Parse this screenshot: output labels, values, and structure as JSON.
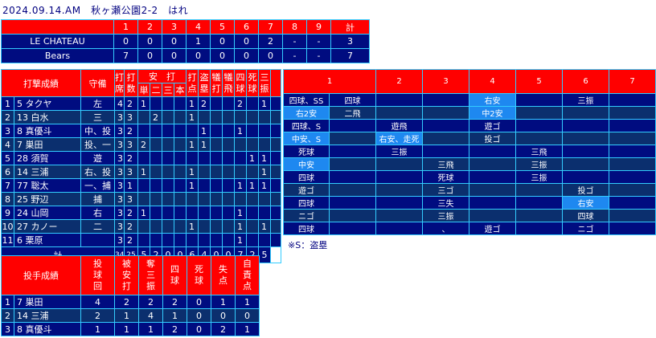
{
  "header": {
    "title": "2024.09.14.AM　秋ヶ瀬公園2-2　はれ"
  },
  "linescore": {
    "innings": [
      "1",
      "2",
      "3",
      "4",
      "5",
      "6",
      "7",
      "8",
      "9"
    ],
    "total_label": "計",
    "teams": [
      {
        "name": "LE CHATEAU",
        "scores": [
          "0",
          "0",
          "0",
          "1",
          "0",
          "0",
          "2",
          "-",
          "-"
        ],
        "total": "3"
      },
      {
        "name": "Bears",
        "scores": [
          "7",
          "0",
          "0",
          "0",
          "0",
          "0",
          "0",
          "-",
          "-"
        ],
        "total": "7"
      }
    ]
  },
  "batting": {
    "title": "打撃成績",
    "position_label": "守備",
    "stat_headers": [
      "打席",
      "打数",
      "単",
      "二",
      "三",
      "本",
      "打点",
      "盗塁",
      "犠打",
      "犠飛",
      "四球",
      "死球",
      "三振"
    ],
    "hit_group_label": "安　打",
    "rows": [
      {
        "order": "1",
        "player": "5 タクヤ",
        "pos": "左",
        "stats": [
          "4",
          "2",
          "1",
          "",
          "",
          "",
          "1",
          "2",
          "",
          "",
          "2",
          "",
          "1"
        ]
      },
      {
        "order": "2",
        "player": "13 白水",
        "pos": "三",
        "stats": [
          "3",
          "3",
          "",
          "2",
          "",
          "",
          "1",
          "",
          "",
          "",
          "",
          "",
          ""
        ]
      },
      {
        "order": "3",
        "player": "8 真優斗",
        "pos": "中、投",
        "stats": [
          "3",
          "2",
          "",
          "",
          "",
          "",
          "",
          "1",
          "",
          "",
          "1",
          "",
          ""
        ]
      },
      {
        "order": "4",
        "player": "7 巣田",
        "pos": "投、一",
        "stats": [
          "3",
          "3",
          "2",
          "",
          "",
          "",
          "1",
          "1",
          "",
          "",
          "",
          "",
          ""
        ]
      },
      {
        "order": "5",
        "player": "28 須賀",
        "pos": "遊",
        "stats": [
          "3",
          "2",
          "",
          "",
          "",
          "",
          "",
          "",
          "",
          "",
          "",
          "1",
          "1"
        ]
      },
      {
        "order": "6",
        "player": "14 三浦",
        "pos": "右、投",
        "stats": [
          "3",
          "3",
          "1",
          "",
          "",
          "",
          "1",
          "",
          "",
          "",
          "",
          "",
          "1"
        ]
      },
      {
        "order": "7",
        "player": "77 聡太",
        "pos": "一、捕",
        "stats": [
          "3",
          "1",
          "",
          "",
          "",
          "",
          "1",
          "",
          "",
          "",
          "1",
          "1",
          "1"
        ]
      },
      {
        "order": "8",
        "player": "25 野辺",
        "pos": "捕",
        "stats": [
          "3",
          "3",
          "",
          "",
          "",
          "",
          "",
          "",
          "",
          "",
          "",
          "",
          ""
        ]
      },
      {
        "order": "9",
        "player": "24 山岡",
        "pos": "右",
        "stats": [
          "3",
          "2",
          "1",
          "",
          "",
          "",
          "",
          "",
          "",
          "",
          "1",
          "",
          ""
        ]
      },
      {
        "order": "10",
        "player": "27 カノー",
        "pos": "二",
        "stats": [
          "3",
          "2",
          "",
          "",
          "",
          "",
          "1",
          "",
          "",
          "",
          "1",
          "",
          "1"
        ]
      },
      {
        "order": "11",
        "player": "6 栗原",
        "pos": "",
        "stats": [
          "3",
          "2",
          "",
          "",
          "",
          "",
          "",
          "",
          "",
          "",
          "1",
          "",
          ""
        ]
      }
    ],
    "total_label": "計",
    "totals": [
      "34",
      "25",
      "5",
      "2",
      "0",
      "0",
      "6",
      "4",
      "0",
      "0",
      "7",
      "2",
      "5"
    ]
  },
  "at_bats": {
    "innings": [
      "1",
      "2",
      "3",
      "4",
      "5",
      "6",
      "7"
    ],
    "rows": [
      [
        {
          "t": "四球、SS"
        },
        {
          "t": "四球"
        },
        {
          "t": ""
        },
        {
          "t": ""
        },
        {
          "t": "右安",
          "hit": true
        },
        {
          "t": ""
        },
        {
          "t": "三振"
        },
        {
          "t": ""
        }
      ],
      [
        {
          "t": "右2安",
          "hit": true
        },
        {
          "t": "二飛"
        },
        {
          "t": ""
        },
        {
          "t": ""
        },
        {
          "t": "中2安",
          "hit": true
        },
        {
          "t": ""
        },
        {
          "t": ""
        },
        {
          "t": ""
        }
      ],
      [
        {
          "t": "四球、S"
        },
        {
          "t": ""
        },
        {
          "t": "遊飛"
        },
        {
          "t": ""
        },
        {
          "t": "遊ゴ"
        },
        {
          "t": ""
        },
        {
          "t": ""
        },
        {
          "t": ""
        }
      ],
      [
        {
          "t": "中安、S",
          "hit": true
        },
        {
          "t": ""
        },
        {
          "t": "右安、走死",
          "hit": true
        },
        {
          "t": ""
        },
        {
          "t": "投ゴ"
        },
        {
          "t": ""
        },
        {
          "t": ""
        },
        {
          "t": ""
        }
      ],
      [
        {
          "t": "死球"
        },
        {
          "t": ""
        },
        {
          "t": "三振"
        },
        {
          "t": ""
        },
        {
          "t": ""
        },
        {
          "t": "三飛"
        },
        {
          "t": ""
        },
        {
          "t": ""
        }
      ],
      [
        {
          "t": "中安",
          "hit": true
        },
        {
          "t": ""
        },
        {
          "t": ""
        },
        {
          "t": "三飛"
        },
        {
          "t": ""
        },
        {
          "t": "三振"
        },
        {
          "t": ""
        },
        {
          "t": ""
        }
      ],
      [
        {
          "t": "四球"
        },
        {
          "t": ""
        },
        {
          "t": ""
        },
        {
          "t": "死球"
        },
        {
          "t": ""
        },
        {
          "t": "三振"
        },
        {
          "t": ""
        },
        {
          "t": ""
        }
      ],
      [
        {
          "t": "遊ゴ"
        },
        {
          "t": ""
        },
        {
          "t": ""
        },
        {
          "t": "三ゴ"
        },
        {
          "t": ""
        },
        {
          "t": ""
        },
        {
          "t": "投ゴ"
        },
        {
          "t": ""
        }
      ],
      [
        {
          "t": "四球"
        },
        {
          "t": ""
        },
        {
          "t": ""
        },
        {
          "t": "三失"
        },
        {
          "t": ""
        },
        {
          "t": ""
        },
        {
          "t": "右安",
          "hit": true
        },
        {
          "t": ""
        }
      ],
      [
        {
          "t": "ニゴ"
        },
        {
          "t": ""
        },
        {
          "t": ""
        },
        {
          "t": "三振"
        },
        {
          "t": ""
        },
        {
          "t": ""
        },
        {
          "t": "四球"
        },
        {
          "t": ""
        }
      ],
      [
        {
          "t": "四球"
        },
        {
          "t": ""
        },
        {
          "t": ""
        },
        {
          "t": "、"
        },
        {
          "t": "遊ゴ"
        },
        {
          "t": ""
        },
        {
          "t": "ニゴ"
        },
        {
          "t": ""
        }
      ]
    ],
    "note": "※S：盗塁"
  },
  "pitching": {
    "title": "投手成績",
    "headers": [
      "投\n球\n回",
      "被\n安\n打",
      "奪\n三\n振",
      "四\n球",
      "死\n球",
      "失\n点",
      "自\n責\n点"
    ],
    "rows": [
      {
        "order": "1",
        "player": "7 巣田",
        "stats": [
          "4",
          "2",
          "2",
          "2",
          "0",
          "1",
          "1"
        ]
      },
      {
        "order": "2",
        "player": "14 三浦",
        "stats": [
          "2",
          "1",
          "4",
          "1",
          "0",
          "0",
          "0"
        ]
      },
      {
        "order": "3",
        "player": "8 真優斗",
        "stats": [
          "1",
          "1",
          "1",
          "2",
          "0",
          "2",
          "1"
        ]
      }
    ]
  },
  "colors": {
    "header": "#ff0000",
    "row_dark": "#000c80",
    "row_alt": "#0b2f6e",
    "hit_cell": "#1e88f0",
    "grid": "#33ccff"
  }
}
